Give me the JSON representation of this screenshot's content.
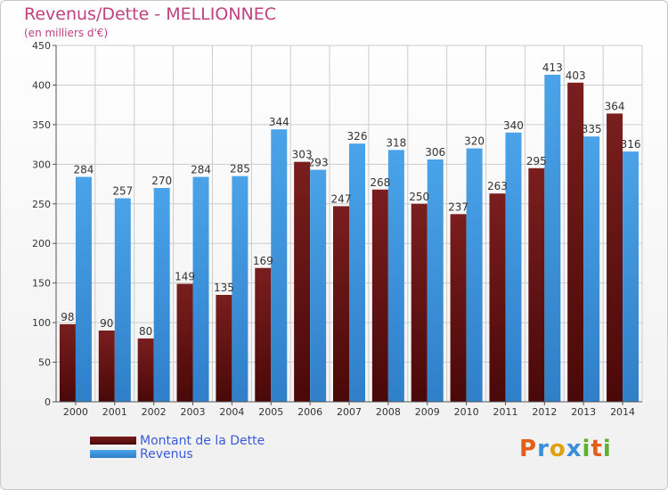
{
  "header": {
    "title": "Revenus/Dette - MELLIONNEC",
    "subtitle": "(en milliers d'€)"
  },
  "logo": {
    "text": "Proxiti"
  },
  "colors": {
    "debt_bar": "#7a1e1e",
    "debt_bar_dark": "#4a0808",
    "revenue_bar": "#4aa3e8",
    "revenue_bar_light": "#2f7fc9",
    "grid": "#cccccc",
    "axis_text": "#333333",
    "logo_p": "#e0601a",
    "logo_r": "#3a8fd8",
    "logo_o": "#e0a010",
    "logo_x": "#3a8fd8",
    "logo_i": "#60b030",
    "logo_t": "#e0601a"
  },
  "chart_data": {
    "type": "bar",
    "title": "Revenus/Dette - MELLIONNEC",
    "subtitle": "(en milliers d'€)",
    "categories": [
      "2000",
      "2001",
      "2002",
      "2003",
      "2004",
      "2005",
      "2006",
      "2007",
      "2008",
      "2009",
      "2010",
      "2011",
      "2012",
      "2013",
      "2014"
    ],
    "series": [
      {
        "name": "Montant de la Dette",
        "values": [
          98,
          90,
          80,
          149,
          135,
          169,
          303,
          247,
          268,
          250,
          237,
          263,
          295,
          403,
          364
        ]
      },
      {
        "name": "Revenus",
        "values": [
          284,
          257,
          270,
          284,
          285,
          344,
          293,
          326,
          318,
          306,
          320,
          340,
          413,
          335,
          316
        ]
      }
    ],
    "ylim": [
      0,
      450
    ],
    "yticks": [
      0,
      50,
      100,
      150,
      200,
      250,
      300,
      350,
      400,
      450
    ],
    "grid": true,
    "legend": "bottom-left",
    "data_labels": true
  }
}
